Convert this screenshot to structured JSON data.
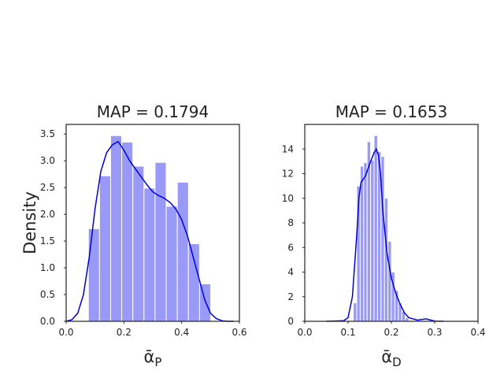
{
  "chart_data": [
    {
      "type": "histogram",
      "title": "MAP = 0.1794",
      "xlabel": "ᾱ",
      "xlabel_sub": "P",
      "ylabel": "Density",
      "bins": [
        0.077,
        0.1155,
        0.154,
        0.1925,
        0.231,
        0.2695,
        0.308,
        0.3465,
        0.385,
        0.4235,
        0.462,
        0.5005
      ],
      "values": [
        1.73,
        2.72,
        3.47,
        3.35,
        2.9,
        2.49,
        2.97,
        2.15,
        2.6,
        1.45,
        0.7
      ],
      "color": "#9999f7",
      "line": {
        "color": "#0000dd",
        "x": [
          0,
          0.02,
          0.04,
          0.06,
          0.08,
          0.1,
          0.12,
          0.14,
          0.16,
          0.18,
          0.2,
          0.22,
          0.24,
          0.26,
          0.28,
          0.3,
          0.32,
          0.34,
          0.36,
          0.38,
          0.4,
          0.42,
          0.44,
          0.46,
          0.48,
          0.5,
          0.52,
          0.54,
          0.56,
          0.58
        ],
        "values": [
          0,
          0.03,
          0.15,
          0.5,
          1.2,
          2.1,
          2.8,
          3.15,
          3.3,
          3.36,
          3.2,
          3.0,
          2.85,
          2.7,
          2.55,
          2.42,
          2.35,
          2.3,
          2.22,
          2.1,
          1.9,
          1.6,
          1.2,
          0.8,
          0.4,
          0.15,
          0.05,
          0.01,
          0,
          0
        ]
      },
      "xlim": [
        0,
        0.6
      ],
      "ylim": [
        0,
        3.68
      ],
      "xticks": [
        {
          "value": 0,
          "label": "0.0"
        },
        0.2,
        0.4,
        0.6
      ],
      "yticks": [
        {
          "value": 0,
          "label": "0.0"
        },
        0.5,
        {
          "value": 1,
          "label": "1.0"
        },
        1.5,
        {
          "value": 2,
          "label": "2.0"
        },
        2.5,
        {
          "value": 3,
          "label": "3.0"
        },
        3.5
      ]
    },
    {
      "type": "histogram",
      "title": "MAP = 0.1653",
      "xlabel": "ᾱ",
      "xlabel_sub": "D",
      "bins": [
        0.112,
        0.12,
        0.128,
        0.136,
        0.144,
        0.152,
        0.16,
        0.168,
        0.176,
        0.184,
        0.192,
        0.2,
        0.208,
        0.216,
        0.224,
        0.232,
        0.24
      ],
      "values": [
        1.5,
        11,
        12.6,
        12.9,
        14.6,
        13.1,
        15.1,
        13.8,
        13.4,
        10,
        6.5,
        4,
        2.5,
        1.5,
        0.8,
        0.3
      ],
      "color": "#9999f7",
      "line": {
        "color": "#0000dd",
        "x": [
          0.05,
          0.09,
          0.1,
          0.11,
          0.12,
          0.125,
          0.13,
          0.14,
          0.15,
          0.16,
          0.165,
          0.17,
          0.175,
          0.18,
          0.19,
          0.2,
          0.21,
          0.22,
          0.23,
          0.24,
          0.26,
          0.28,
          0.3,
          0.32
        ],
        "values": [
          0,
          0.05,
          0.3,
          2,
          7,
          10,
          11.3,
          11.8,
          12.8,
          13.7,
          14,
          13.5,
          12,
          9,
          5.5,
          3.5,
          2.3,
          1.4,
          0.7,
          0.3,
          0.1,
          0.2,
          0.02,
          0
        ]
      },
      "xlim": [
        0,
        0.4
      ],
      "ylim": [
        0,
        16
      ],
      "xticks": [
        {
          "value": 0,
          "label": "0.0"
        },
        0.1,
        0.2,
        0.3,
        0.4
      ],
      "yticks": [
        0,
        2,
        4,
        6,
        8,
        10,
        12,
        14
      ]
    }
  ]
}
